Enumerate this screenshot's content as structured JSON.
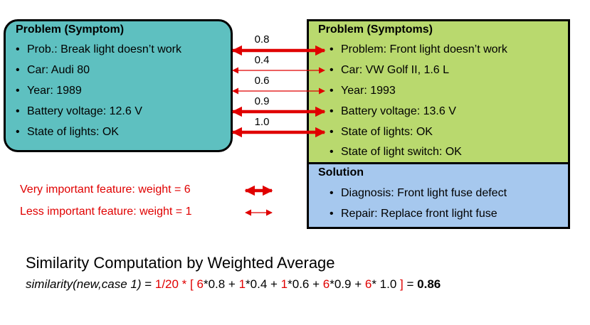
{
  "left": {
    "title": "Problem (Symptom)",
    "items": [
      "Prob.: Break light doesn’t work",
      "Car: Audi 80",
      "Year: 1989",
      "Battery voltage: 12.6 V",
      "State of lights: OK"
    ]
  },
  "right": {
    "title": "Problem (Symptoms)",
    "items": [
      "Problem: Front light doesn’t work",
      "Car: VW Golf II, 1.6 L",
      "Year: 1993",
      "Battery voltage: 13.6 V",
      "State of lights: OK",
      "State of light switch: OK"
    ],
    "solution_title": "Solution",
    "solution_items": [
      "Diagnosis: Front light fuse defect",
      "Repair: Replace front light fuse"
    ]
  },
  "weights": [
    "0.8",
    "0.4",
    "0.6",
    "0.9",
    "1.0"
  ],
  "legend": {
    "very": "Very important feature: weight = 6",
    "less": "Less important feature: weight = 1"
  },
  "bullet": "•",
  "heading": "Similarity Computation by Weighted Average",
  "formula": {
    "prefix": "similarity(new,case 1)",
    "eq": " = ",
    "p1": "1/20 * [ ",
    "w1": "6",
    "t1": "*0.8 + ",
    "w2": "1",
    "t2": "*0.4 + ",
    "w3": "1",
    "t3": "*0.6 + ",
    "w4": "6",
    "t4": "*0.9 + ",
    "w5": "6",
    "t5": "* 1.0 ",
    "close": "]",
    "eq2": " = ",
    "result": "0.86"
  },
  "colors": {
    "arrow": "#e00000",
    "left_fill": "#5ec0c0",
    "right_fill": "#b9d96e",
    "solution_fill": "#a6c8ee"
  }
}
